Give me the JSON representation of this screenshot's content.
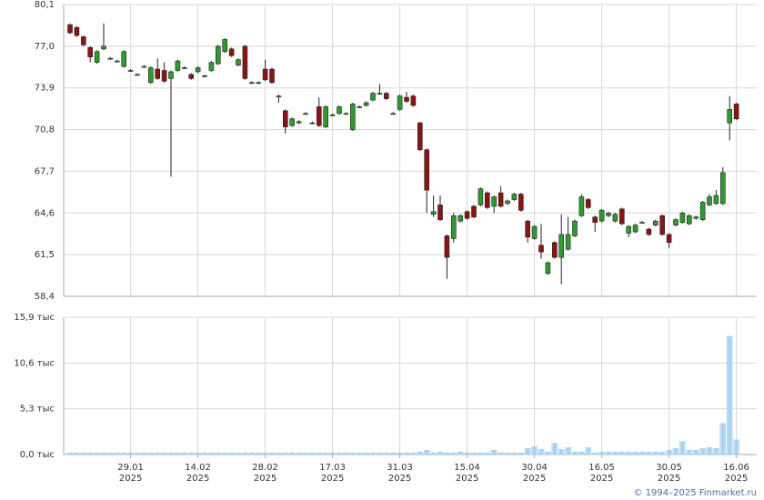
{
  "chart_data": [
    {
      "type": "candlestick",
      "open": [
        78.6,
        78.4,
        77.7,
        76.9,
        75.8,
        76.8,
        76.1,
        75.9,
        75.5,
        75.2,
        74.9,
        75.5,
        74.3,
        75.3,
        75.2,
        74.6,
        75.2,
        75.4,
        74.9,
        75.1,
        74.8,
        75.2,
        75.7,
        76.6,
        76.8,
        75.6,
        77.0,
        74.3,
        74.3,
        75.3,
        75.3,
        73.3,
        72.2,
        71.1,
        71.3,
        72.0,
        71.3,
        72.5,
        71.0,
        71.9,
        72.0,
        72.0,
        70.8,
        72.5,
        72.6,
        73.0,
        73.5,
        73.5,
        72.0,
        72.3,
        73.2,
        73.3,
        71.3,
        69.3,
        64.5,
        65.2,
        62.9,
        62.7,
        64.0,
        64.7,
        65.1,
        65.2,
        66.1,
        65.1,
        66.1,
        65.3,
        65.6,
        66.0,
        64.0,
        62.7,
        62.2,
        60.1,
        62.4,
        61.3,
        61.9,
        62.9,
        64.4,
        65.6,
        64.3,
        64.0,
        64.4,
        64.0,
        64.9,
        63.1,
        63.2,
        63.9,
        63.4,
        63.7,
        64.4,
        63.0,
        63.7,
        63.9,
        63.8,
        64.2,
        64.1,
        65.2,
        65.3,
        65.3,
        71.3,
        72.7
      ],
      "high": [
        78.7,
        78.5,
        77.8,
        77.0,
        76.7,
        78.7,
        76.2,
        76.0,
        76.7,
        75.3,
        75.0,
        75.6,
        75.5,
        76.1,
        75.8,
        75.2,
        76.0,
        75.5,
        75.0,
        75.5,
        74.9,
        75.9,
        77.1,
        77.6,
        76.9,
        76.1,
        77.1,
        74.4,
        74.4,
        76.0,
        75.4,
        73.4,
        72.3,
        71.7,
        71.5,
        72.1,
        71.4,
        73.2,
        72.6,
        72.0,
        72.6,
        72.1,
        72.8,
        72.6,
        72.9,
        73.6,
        74.2,
        73.6,
        72.1,
        73.4,
        73.6,
        73.4,
        71.4,
        69.4,
        65.9,
        65.9,
        63.0,
        64.6,
        64.5,
        64.8,
        65.2,
        66.5,
        66.2,
        65.9,
        66.6,
        65.6,
        66.1,
        66.1,
        64.1,
        63.7,
        63.8,
        61.0,
        62.5,
        64.5,
        64.3,
        64.1,
        66.0,
        65.7,
        64.4,
        64.9,
        64.7,
        64.6,
        65.0,
        63.7,
        63.8,
        64.0,
        63.5,
        64.1,
        64.5,
        63.1,
        64.2,
        64.7,
        64.5,
        64.4,
        65.5,
        66.0,
        66.3,
        68.0,
        73.3,
        72.8
      ],
      "low": [
        77.9,
        77.7,
        77.0,
        75.8,
        75.7,
        76.7,
        76.0,
        75.8,
        75.4,
        75.1,
        74.8,
        75.4,
        74.2,
        74.5,
        74.3,
        67.3,
        75.1,
        75.3,
        74.5,
        75.0,
        74.7,
        75.1,
        75.6,
        76.5,
        76.2,
        75.5,
        74.5,
        74.2,
        74.2,
        74.4,
        74.2,
        72.8,
        70.5,
        71.0,
        71.2,
        71.9,
        71.2,
        71.0,
        70.9,
        71.8,
        71.9,
        71.9,
        70.7,
        72.4,
        72.5,
        72.9,
        73.4,
        73.0,
        71.9,
        72.2,
        72.8,
        72.5,
        69.2,
        64.6,
        64.3,
        64.0,
        59.7,
        62.4,
        63.9,
        64.1,
        64.2,
        65.1,
        64.9,
        64.6,
        65.0,
        65.2,
        65.5,
        64.7,
        62.4,
        62.6,
        61.2,
        60.0,
        61.2,
        59.3,
        61.8,
        62.8,
        64.3,
        64.9,
        63.2,
        63.9,
        64.3,
        63.9,
        63.7,
        62.8,
        63.1,
        63.8,
        62.9,
        63.6,
        62.9,
        62.0,
        63.6,
        63.8,
        63.7,
        64.1,
        64.0,
        65.1,
        65.2,
        65.2,
        70.0,
        71.5
      ],
      "close": [
        78.0,
        77.8,
        77.1,
        76.2,
        76.6,
        77.0,
        76.1,
        75.9,
        76.6,
        75.2,
        74.9,
        75.5,
        75.4,
        74.6,
        74.4,
        75.1,
        75.9,
        75.4,
        74.6,
        75.4,
        74.8,
        75.8,
        77.0,
        77.5,
        76.3,
        76.0,
        74.6,
        74.3,
        74.3,
        74.5,
        74.3,
        73.3,
        71.0,
        71.6,
        71.4,
        72.0,
        71.3,
        71.1,
        72.5,
        71.9,
        72.5,
        72.0,
        72.7,
        72.5,
        72.8,
        73.5,
        73.5,
        73.1,
        72.0,
        73.3,
        72.9,
        72.6,
        69.3,
        66.3,
        64.7,
        64.1,
        61.3,
        64.4,
        64.4,
        64.2,
        64.3,
        66.4,
        65.0,
        65.8,
        65.1,
        65.5,
        66.0,
        64.8,
        62.8,
        63.6,
        61.7,
        60.9,
        61.3,
        63.0,
        63.0,
        64.0,
        65.8,
        65.0,
        63.9,
        64.8,
        64.6,
        64.5,
        63.8,
        63.6,
        63.7,
        63.9,
        63.0,
        64.0,
        63.0,
        62.4,
        64.1,
        64.6,
        64.4,
        64.3,
        65.4,
        65.8,
        65.9,
        67.6,
        72.3,
        71.6
      ],
      "up_color": "#2f9a2f",
      "down_color": "#8b1414",
      "ylim": [
        58.4,
        80.1
      ],
      "yticks": [
        {
          "value": 58.4,
          "label": "58,4"
        },
        {
          "value": 61.5,
          "label": "61,5"
        },
        {
          "value": 64.6,
          "label": "64,6"
        },
        {
          "value": 67.7,
          "label": "67,7"
        },
        {
          "value": 70.8,
          "label": "70,8"
        },
        {
          "value": 73.9,
          "label": "73,9"
        },
        {
          "value": 77.0,
          "label": "77,0"
        },
        {
          "value": 80.1,
          "label": "80,1"
        }
      ],
      "grid": true
    },
    {
      "type": "bar",
      "categories": [
        null,
        null,
        null,
        null,
        null,
        null,
        null,
        null,
        null,
        "29.01\n2025",
        null,
        null,
        null,
        null,
        null,
        null,
        null,
        null,
        null,
        "14.02\n2025",
        null,
        null,
        null,
        null,
        null,
        null,
        null,
        null,
        null,
        "28.02\n2025",
        null,
        null,
        null,
        null,
        null,
        null,
        null,
        null,
        null,
        "17.03\n2025",
        null,
        null,
        null,
        null,
        null,
        null,
        null,
        null,
        null,
        "31.03\n2025",
        null,
        null,
        null,
        null,
        null,
        null,
        null,
        null,
        null,
        "15.04\n2025",
        null,
        null,
        null,
        null,
        null,
        null,
        null,
        null,
        null,
        "30.04\n2025",
        null,
        null,
        null,
        null,
        null,
        null,
        null,
        null,
        null,
        "16.05\n2025",
        null,
        null,
        null,
        null,
        null,
        null,
        null,
        null,
        null,
        "30.05\n2025",
        null,
        null,
        null,
        null,
        null,
        null,
        null,
        null,
        null,
        "16.06\n2025"
      ],
      "values": [
        0.2,
        0.2,
        0.2,
        0.2,
        0.2,
        0.2,
        0.2,
        0.2,
        0.2,
        0.2,
        0.2,
        0.2,
        0.2,
        0.2,
        0.2,
        0.2,
        0.2,
        0.2,
        0.2,
        0.2,
        0.2,
        0.2,
        0.2,
        0.2,
        0.2,
        0.2,
        0.2,
        0.2,
        0.2,
        0.2,
        0.2,
        0.2,
        0.2,
        0.2,
        0.2,
        0.2,
        0.2,
        0.2,
        0.2,
        0.2,
        0.2,
        0.2,
        0.2,
        0.2,
        0.2,
        0.2,
        0.2,
        0.2,
        0.2,
        0.2,
        0.2,
        0.2,
        0.3,
        0.5,
        0.2,
        0.3,
        0.2,
        0.2,
        0.3,
        0.2,
        0.2,
        0.2,
        0.2,
        0.5,
        0.2,
        0.2,
        0.2,
        0.2,
        0.7,
        0.9,
        0.6,
        0.3,
        1.3,
        0.6,
        0.8,
        0.3,
        0.3,
        0.8,
        0.2,
        0.3,
        0.3,
        0.3,
        0.3,
        0.3,
        0.3,
        0.3,
        0.3,
        0.3,
        0.3,
        0.5,
        0.7,
        1.5,
        0.5,
        0.5,
        0.7,
        0.8,
        0.7,
        3.6,
        13.7,
        1.7
      ],
      "color": "#9fcbef",
      "ylim": [
        0,
        15.9
      ],
      "yticks": [
        {
          "value": 0,
          "label": "0,0 тыс"
        },
        {
          "value": 5.3,
          "label": "5,3 тыс"
        },
        {
          "value": 10.6,
          "label": "10,6 тыс"
        },
        {
          "value": 15.9,
          "label": "15,9 тыс"
        }
      ],
      "grid": true
    }
  ],
  "footer": "© 1994–2025 Finmarket.ru"
}
